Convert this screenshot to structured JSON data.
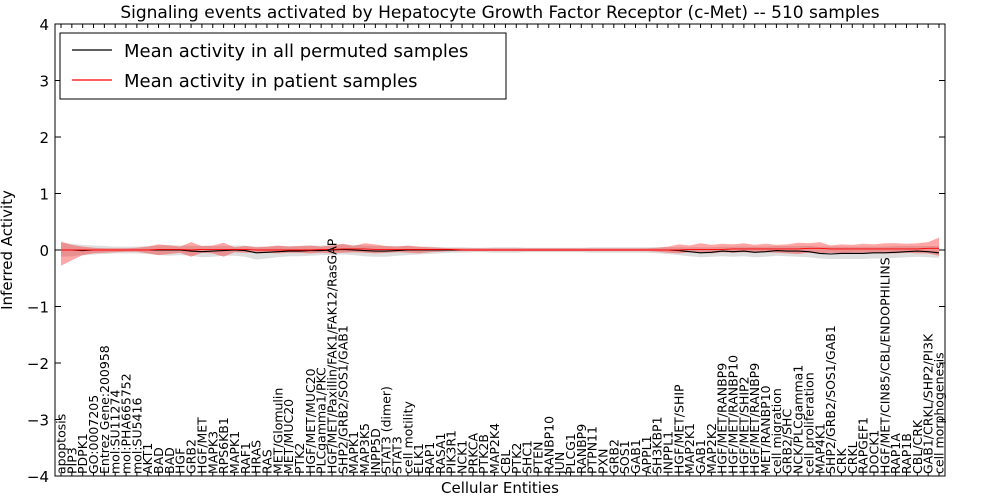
{
  "chart_data": {
    "type": "line",
    "title": "Signaling events activated by Hepatocyte Growth Factor Receptor (c-Met) -- 510 samples",
    "xlabel": "Cellular Entities",
    "ylabel": "Inferred Activity",
    "ylim": [
      -4,
      4
    ],
    "yticks": [
      -4,
      -3,
      -2,
      -1,
      0,
      1,
      2,
      3,
      4
    ],
    "ytick_labels": [
      "−4",
      "−3",
      "−2",
      "−1",
      "0",
      "1",
      "2",
      "3",
      "4"
    ],
    "grid": false,
    "legend_position": "top-left",
    "categories": [
      "apoptosis",
      "PIP3",
      "PDPK1",
      "GO:0007205",
      "Entrez Gene:200958",
      "mol:SU11274",
      "mol:PHA665752",
      "mol:SU5416",
      "AKT1",
      "BAD",
      "BAD",
      "HGF",
      "GRB2",
      "HGF/MET",
      "MAPK3",
      "RPS6KB1",
      "MAPK1",
      "RAF1",
      "HRAS",
      "RAS",
      "MET/Glomulin",
      "MET/MUC20",
      "PTK2",
      "HGF/MET/MUC20",
      "PLCgamma1/PKC",
      "HGF/MET/Paxillin/FAK1/FAK12/RasGAP",
      "SHP2/GRB2/SOS1/GAB1",
      "MAPK1",
      "MAP3K5",
      "INPP5D",
      "STAT3 (dimer)",
      "STAT3",
      "cell motility",
      "ELK1",
      "RAP1",
      "RASA1",
      "PIK3R1",
      "NCK1",
      "PRKCA",
      "PTK2B",
      "MAP2K4",
      "CBL",
      "PTK2",
      "SHC1",
      "PTEN",
      "RANBP10",
      "JUN",
      "PLCG1",
      "RANBP9",
      "PTPN11",
      "PXN",
      "GRB2",
      "SOS1",
      "GAB1",
      "APPL1",
      "SH3KBP1",
      "INPPL1",
      "HGF/MET/SHIP",
      "MAP2K1",
      "GAB1",
      "MAP2K2",
      "HGF/MET/RANBP9",
      "HGF/MET/RANBP10",
      "HGF/MET/SHIP2",
      "HGF/MET/RANBP9",
      "MET/RANBP10",
      "cell migration",
      "GRB2/SHC",
      "NCK/PLCgamma1",
      "cell proliferation",
      "MAP4K1",
      "SHP2/GRB2/SOS1/GAB1",
      "CRK",
      "CRKL",
      "RAPGEF1",
      "DOCK1",
      "HGF/MET/CIN85/CBL/ENDOPHILINS",
      "RAP1A",
      "RAP1B",
      "CBL/CRK",
      "GAB1/CRKL/SHP2/PI3K",
      "cell morphogenesis"
    ],
    "series": [
      {
        "name": "Mean activity in all permuted samples",
        "color": "#000000",
        "values": [
          0.0,
          0.0,
          -0.01,
          0.0,
          0.0,
          0.0,
          0.0,
          0.0,
          0.0,
          0.0,
          0.0,
          0.0,
          -0.02,
          -0.03,
          -0.02,
          -0.01,
          0.0,
          -0.01,
          -0.05,
          -0.04,
          -0.03,
          -0.02,
          -0.02,
          -0.01,
          -0.01,
          0.0,
          0.01,
          0.0,
          -0.01,
          -0.02,
          -0.02,
          -0.01,
          0.0,
          0.0,
          0.0,
          0.0,
          0.0,
          0.0,
          0.0,
          0.0,
          0.0,
          0.0,
          0.0,
          0.0,
          0.0,
          0.0,
          0.0,
          0.0,
          0.0,
          0.0,
          0.0,
          0.0,
          0.0,
          0.0,
          0.0,
          0.0,
          0.0,
          -0.01,
          -0.03,
          -0.05,
          -0.04,
          -0.02,
          -0.03,
          -0.02,
          -0.04,
          -0.03,
          -0.01,
          -0.02,
          -0.02,
          -0.03,
          -0.06,
          -0.07,
          -0.06,
          -0.06,
          -0.06,
          -0.05,
          -0.05,
          -0.04,
          -0.03,
          -0.02,
          -0.03,
          -0.05
        ],
        "band_lower": [
          -0.12,
          -0.11,
          -0.09,
          -0.08,
          -0.07,
          -0.06,
          -0.06,
          -0.06,
          -0.07,
          -0.09,
          -0.1,
          -0.09,
          -0.1,
          -0.13,
          -0.12,
          -0.1,
          -0.1,
          -0.12,
          -0.17,
          -0.15,
          -0.13,
          -0.11,
          -0.11,
          -0.1,
          -0.09,
          -0.09,
          -0.08,
          -0.09,
          -0.11,
          -0.12,
          -0.12,
          -0.1,
          -0.09,
          -0.08,
          -0.07,
          -0.06,
          -0.05,
          -0.05,
          -0.04,
          -0.04,
          -0.05,
          -0.05,
          -0.05,
          -0.04,
          -0.04,
          -0.04,
          -0.04,
          -0.04,
          -0.04,
          -0.05,
          -0.05,
          -0.05,
          -0.05,
          -0.05,
          -0.05,
          -0.06,
          -0.07,
          -0.09,
          -0.11,
          -0.13,
          -0.12,
          -0.11,
          -0.12,
          -0.11,
          -0.13,
          -0.12,
          -0.1,
          -0.11,
          -0.12,
          -0.13,
          -0.15,
          -0.16,
          -0.16,
          -0.16,
          -0.16,
          -0.15,
          -0.15,
          -0.14,
          -0.13,
          -0.12,
          -0.13,
          -0.14
        ],
        "band_upper": [
          0.12,
          0.11,
          0.09,
          0.08,
          0.07,
          0.06,
          0.06,
          0.06,
          0.07,
          0.08,
          0.09,
          0.08,
          0.07,
          0.07,
          0.07,
          0.07,
          0.08,
          0.08,
          0.06,
          0.06,
          0.07,
          0.07,
          0.07,
          0.08,
          0.08,
          0.09,
          0.1,
          0.09,
          0.08,
          0.07,
          0.07,
          0.07,
          0.07,
          0.06,
          0.06,
          0.05,
          0.05,
          0.05,
          0.04,
          0.04,
          0.05,
          0.05,
          0.05,
          0.04,
          0.04,
          0.04,
          0.04,
          0.04,
          0.04,
          0.05,
          0.05,
          0.05,
          0.05,
          0.05,
          0.05,
          0.05,
          0.05,
          0.05,
          0.05,
          0.05,
          0.05,
          0.06,
          0.06,
          0.06,
          0.06,
          0.06,
          0.07,
          0.07,
          0.07,
          0.07,
          0.06,
          0.06,
          0.06,
          0.06,
          0.06,
          0.06,
          0.06,
          0.07,
          0.07,
          0.07,
          0.07,
          0.07
        ]
      },
      {
        "name": "Mean activity in patient samples",
        "color": "#ff0000",
        "values": [
          0.0,
          0.0,
          0.0,
          0.0,
          0.0,
          0.0,
          0.0,
          0.0,
          0.0,
          0.01,
          0.01,
          0.01,
          0.0,
          0.01,
          0.01,
          0.01,
          0.01,
          0.01,
          0.0,
          0.0,
          0.0,
          0.0,
          0.0,
          0.0,
          0.01,
          0.01,
          0.02,
          0.02,
          0.02,
          0.01,
          0.01,
          0.01,
          0.01,
          0.01,
          0.01,
          0.01,
          0.01,
          0.0,
          0.0,
          0.0,
          0.0,
          0.0,
          0.0,
          0.0,
          0.0,
          0.0,
          0.0,
          0.0,
          0.0,
          0.0,
          0.0,
          0.0,
          0.0,
          0.0,
          0.0,
          0.0,
          0.0,
          0.0,
          0.01,
          0.01,
          0.01,
          0.01,
          0.02,
          0.02,
          0.02,
          0.02,
          0.02,
          0.02,
          0.02,
          0.03,
          0.03,
          0.02,
          0.02,
          0.02,
          0.02,
          0.02,
          0.02,
          0.02,
          0.02,
          0.02,
          0.03,
          0.03
        ],
        "band_lower": [
          -0.28,
          -0.18,
          -0.09,
          -0.06,
          -0.05,
          -0.04,
          -0.03,
          -0.03,
          -0.06,
          -0.09,
          -0.07,
          -0.05,
          -0.12,
          -0.05,
          -0.06,
          -0.12,
          -0.04,
          -0.05,
          -0.04,
          -0.05,
          -0.06,
          -0.05,
          -0.05,
          -0.06,
          -0.05,
          -0.06,
          -0.05,
          -0.04,
          -0.05,
          -0.06,
          -0.05,
          -0.04,
          -0.05,
          -0.06,
          -0.04,
          -0.03,
          -0.02,
          -0.02,
          -0.02,
          -0.02,
          -0.02,
          -0.02,
          -0.02,
          -0.02,
          -0.02,
          -0.02,
          -0.02,
          -0.02,
          -0.02,
          -0.02,
          -0.02,
          -0.02,
          -0.02,
          -0.02,
          -0.02,
          -0.03,
          -0.05,
          -0.06,
          -0.04,
          -0.05,
          -0.06,
          -0.04,
          -0.05,
          -0.04,
          -0.05,
          -0.04,
          -0.05,
          -0.06,
          -0.07,
          -0.05,
          -0.06,
          -0.05,
          -0.06,
          -0.05,
          -0.05,
          -0.05,
          -0.06,
          -0.06,
          -0.05,
          -0.06,
          -0.06,
          -0.1
        ],
        "band_upper": [
          0.15,
          0.09,
          0.06,
          0.04,
          0.03,
          0.03,
          0.03,
          0.04,
          0.06,
          0.1,
          0.08,
          0.06,
          0.14,
          0.07,
          0.08,
          0.13,
          0.05,
          0.07,
          0.05,
          0.06,
          0.08,
          0.06,
          0.07,
          0.08,
          0.06,
          0.08,
          0.11,
          0.07,
          0.12,
          0.1,
          0.07,
          0.06,
          0.08,
          0.06,
          0.05,
          0.04,
          0.03,
          0.03,
          0.03,
          0.03,
          0.03,
          0.03,
          0.03,
          0.03,
          0.03,
          0.03,
          0.03,
          0.03,
          0.03,
          0.03,
          0.03,
          0.03,
          0.03,
          0.03,
          0.03,
          0.04,
          0.06,
          0.1,
          0.08,
          0.12,
          0.09,
          0.11,
          0.1,
          0.12,
          0.09,
          0.11,
          0.09,
          0.1,
          0.13,
          0.12,
          0.14,
          0.08,
          0.1,
          0.09,
          0.11,
          0.1,
          0.12,
          0.12,
          0.11,
          0.12,
          0.14,
          0.22
        ]
      }
    ]
  },
  "legend": {
    "items": [
      {
        "label": "Mean activity in all permuted samples",
        "color": "#000000"
      },
      {
        "label": "Mean activity in patient samples",
        "color": "#ff0000"
      }
    ]
  }
}
